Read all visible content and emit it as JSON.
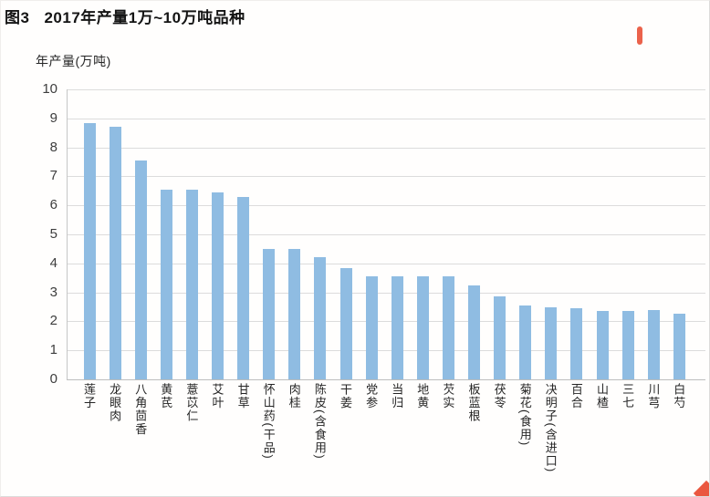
{
  "title": {
    "figure_label": "图3",
    "text": "2017年产量1万~10万吨品种"
  },
  "y_axis_title": "年产量(万吨)",
  "colors": {
    "bar": "#8FBCE2",
    "gridline": "#DCDCDC",
    "axis": "#BDBDBD",
    "watermark_red": "#E8462B"
  },
  "chart_data": {
    "type": "bar",
    "title": "图3 2017年产量1万~10万吨品种",
    "xlabel": "",
    "ylabel": "年产量(万吨)",
    "ylim": [
      0,
      10
    ],
    "yticks": [
      0,
      1,
      2,
      3,
      4,
      5,
      6,
      7,
      8,
      9,
      10
    ],
    "grid": true,
    "legend": false,
    "bar_color": "#8FBCE2",
    "categories": [
      "莲子",
      "龙眼肉",
      "八角茴香",
      "黄芪",
      "薏苡仁",
      "艾叶",
      "甘草",
      "怀山药(干品)",
      "肉桂",
      "陈皮(含食用)",
      "干姜",
      "党参",
      "当归",
      "地黄",
      "芡实",
      "板蓝根",
      "茯苓",
      "菊花(食用)",
      "决明子(含进口)",
      "百合",
      "山楂",
      "三七",
      "川芎",
      "白芍"
    ],
    "values": [
      8.85,
      8.7,
      7.55,
      6.55,
      6.55,
      6.45,
      6.3,
      4.5,
      4.5,
      4.2,
      3.85,
      3.55,
      3.55,
      3.55,
      3.55,
      3.25,
      2.85,
      2.55,
      2.5,
      2.45,
      2.35,
      2.35,
      2.4,
      2.25
    ]
  }
}
